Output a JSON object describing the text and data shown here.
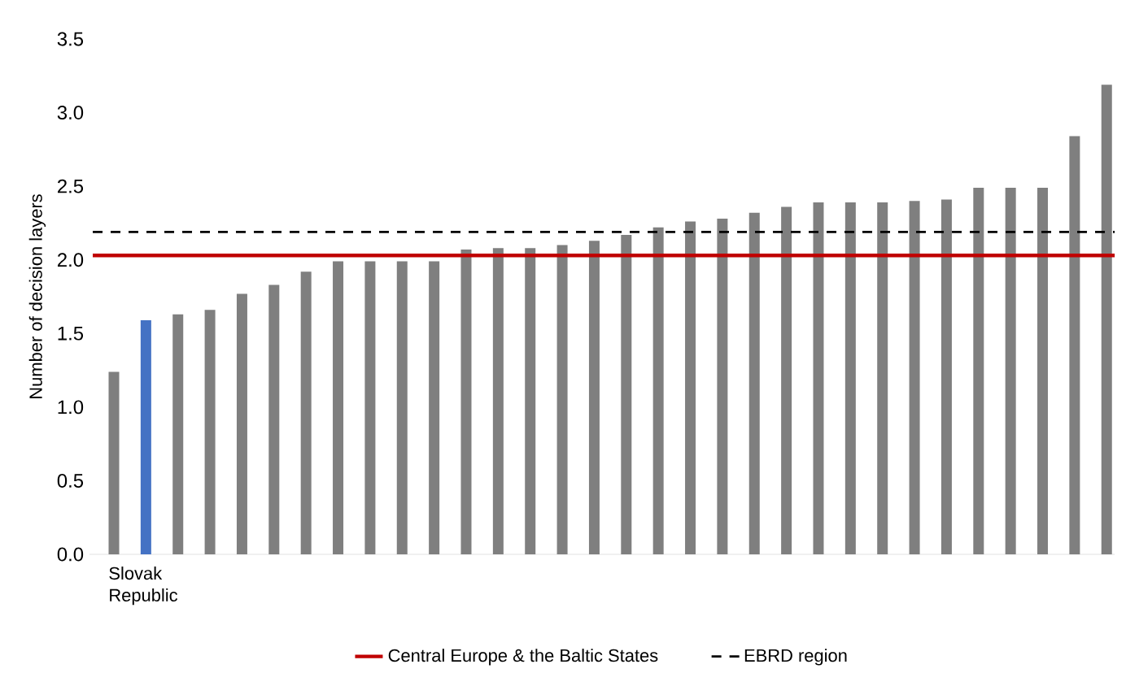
{
  "chart_data": {
    "type": "bar",
    "ylabel": "Number of decision layers",
    "categories": [
      null,
      "Slovak Republic",
      null,
      null,
      null,
      null,
      null,
      null,
      null,
      null,
      null,
      null,
      null,
      null,
      null,
      null,
      null,
      null,
      null,
      null,
      null,
      null,
      null,
      null,
      null,
      null,
      null,
      null,
      null,
      null,
      null,
      null
    ],
    "values": [
      1.24,
      1.59,
      1.63,
      1.66,
      1.77,
      1.83,
      1.92,
      1.99,
      1.99,
      1.99,
      1.99,
      2.07,
      2.08,
      2.08,
      2.1,
      2.13,
      2.17,
      2.22,
      2.26,
      2.28,
      2.32,
      2.36,
      2.39,
      2.39,
      2.39,
      2.4,
      2.41,
      2.49,
      2.49,
      2.49,
      2.84,
      3.19
    ],
    "colors": [
      "#7f7f7f",
      "#4472c4",
      "#7f7f7f",
      "#7f7f7f",
      "#7f7f7f",
      "#7f7f7f",
      "#7f7f7f",
      "#7f7f7f",
      "#7f7f7f",
      "#7f7f7f",
      "#7f7f7f",
      "#7f7f7f",
      "#7f7f7f",
      "#7f7f7f",
      "#7f7f7f",
      "#7f7f7f",
      "#7f7f7f",
      "#7f7f7f",
      "#7f7f7f",
      "#7f7f7f",
      "#7f7f7f",
      "#7f7f7f",
      "#7f7f7f",
      "#7f7f7f",
      "#7f7f7f",
      "#7f7f7f",
      "#7f7f7f",
      "#7f7f7f",
      "#7f7f7f",
      "#7f7f7f",
      "#7f7f7f",
      "#7f7f7f"
    ],
    "ylim": [
      0,
      3.5
    ],
    "yticks": [
      {
        "value": 0,
        "label": "0.0"
      },
      {
        "value": 0.5,
        "label": "0.5"
      },
      {
        "value": 1,
        "label": "1.0"
      },
      {
        "value": 1.5,
        "label": "1.5"
      },
      {
        "value": 2,
        "label": "2.0"
      },
      {
        "value": 2.5,
        "label": "2.5"
      },
      {
        "value": 3,
        "label": "3.0"
      },
      {
        "value": 3.5,
        "label": "3.5"
      }
    ],
    "ref_lines": [
      {
        "axis": "y",
        "value": 2.03,
        "label": "Central Europe & the Baltic States",
        "color": "#c00000",
        "line_style": "solid"
      },
      {
        "axis": "y",
        "value": 2.19,
        "label": "EBRD region",
        "color": "#000000",
        "line_style": "dashed"
      }
    ],
    "legend": "bottom",
    "grid": false
  }
}
